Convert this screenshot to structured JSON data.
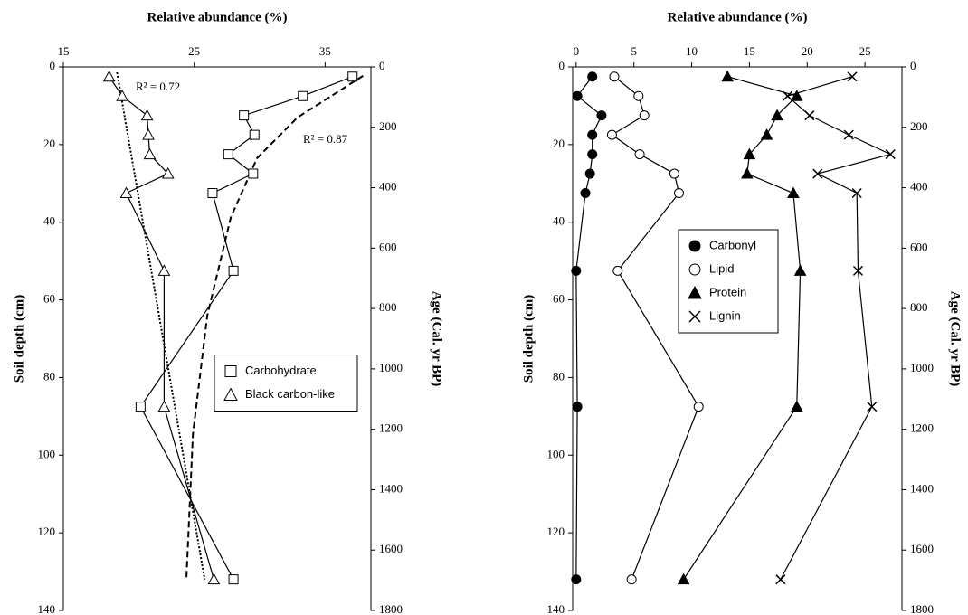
{
  "chart_data": [
    {
      "type": "line",
      "orientation": "vertical",
      "ylabel": "Relative abundance (%)",
      "ylim": [
        15,
        38.5
      ],
      "yticks": [
        15,
        25,
        35
      ],
      "xlabel": "Soil depth (cm)",
      "xlim": [
        0,
        140
      ],
      "xticks": [
        0,
        20,
        40,
        60,
        80,
        100,
        120,
        140
      ],
      "x2label": "Age (Cal. yr BP)",
      "x2lim": [
        0,
        1800
      ],
      "x2ticks": [
        0,
        200,
        400,
        600,
        800,
        1000,
        1200,
        1400,
        1600,
        1800
      ],
      "x": [
        2.5,
        7.5,
        12.5,
        17.5,
        22.5,
        27.5,
        32.5,
        52.5,
        87.5,
        132
      ],
      "series": [
        {
          "name": "Carbohydrate",
          "marker": "square",
          "color": "#000000",
          "values": [
            37.1,
            33.3,
            28.8,
            29.6,
            27.6,
            29.5,
            26.4,
            28.0,
            20.9,
            28.0
          ]
        },
        {
          "name": "Black carbon-like",
          "marker": "triangle",
          "color": "#000000",
          "values": [
            18.5,
            19.5,
            21.4,
            21.5,
            21.6,
            23.0,
            19.8,
            22.7,
            22.7,
            26.5
          ]
        }
      ],
      "fits": [
        {
          "label": "R² = 0.72",
          "style": "dotted",
          "x": [
            1.4,
            132
          ],
          "values": [
            19.1,
            25.8
          ]
        },
        {
          "label": "R² = 0.87",
          "style": "dashed",
          "x": [
            2.3,
            13,
            23.5,
            38.7,
            64,
            94.6,
            132
          ],
          "values": [
            37.9,
            32.9,
            29.8,
            27.8,
            26.0,
            24.9,
            24.4
          ]
        }
      ],
      "legend": "lower right"
    },
    {
      "type": "line",
      "orientation": "vertical",
      "ylabel": "Relative abundance (%)",
      "ylim": [
        -0.3,
        28.2
      ],
      "yticks": [
        0,
        5,
        10,
        15,
        20,
        25
      ],
      "xlabel": "Soil depth (cm)",
      "xlim": [
        0,
        140
      ],
      "xticks": [
        0,
        20,
        40,
        60,
        80,
        100,
        120,
        140
      ],
      "x2label": "Age (Cal. yr BP)",
      "x2lim": [
        0,
        1800
      ],
      "x2ticks": [
        0,
        200,
        400,
        600,
        800,
        1000,
        1200,
        1400,
        1600,
        1800
      ],
      "x": [
        2.5,
        7.5,
        12.5,
        17.5,
        22.5,
        27.5,
        32.5,
        52.5,
        87.5,
        132
      ],
      "series": [
        {
          "name": "Carbonyl",
          "marker": "circle-filled",
          "color": "#000000",
          "values": [
            1.4,
            0.1,
            2.2,
            1.4,
            1.4,
            1.2,
            0.8,
            0,
            0.1,
            0
          ]
        },
        {
          "name": "Lipid",
          "marker": "circle-open",
          "color": "#000000",
          "values": [
            3.3,
            5.4,
            5.9,
            3.1,
            5.5,
            8.5,
            8.9,
            3.6,
            10.6,
            4.8
          ]
        },
        {
          "name": "Protein",
          "marker": "triangle-filled",
          "color": "#000000",
          "values": [
            13.1,
            19.1,
            17.4,
            16.5,
            15.0,
            14.8,
            18.8,
            19.4,
            19.1,
            9.3
          ]
        },
        {
          "name": "Lignin",
          "marker": "cross",
          "color": "#000000",
          "values": [
            23.9,
            18.3,
            20.2,
            23.6,
            27.2,
            20.9,
            24.3,
            24.4,
            25.6,
            17.7
          ]
        }
      ],
      "legend": "upper center"
    }
  ]
}
